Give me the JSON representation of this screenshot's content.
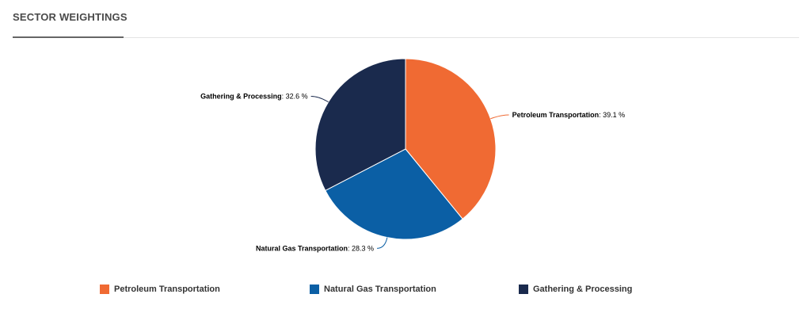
{
  "header": {
    "title": "SECTOR WEIGHTINGS"
  },
  "chart_data": {
    "type": "pie",
    "title": "SECTOR WEIGHTINGS",
    "start_position": "12 o'clock, clockwise",
    "value_suffix": " %",
    "slices": [
      {
        "name": "Petroleum Transportation",
        "value": 39.1,
        "value_label": "39.1 %",
        "color": "#f06a33"
      },
      {
        "name": "Natural Gas Transportation",
        "value": 28.3,
        "value_label": "28.3 %",
        "color": "#0b5fa5"
      },
      {
        "name": "Gathering & Processing",
        "value": 32.6,
        "value_label": "32.6 %",
        "color": "#1a2a4d"
      }
    ],
    "legend": {
      "placement": "bottom",
      "items": [
        "Petroleum Transportation",
        "Natural Gas Transportation",
        "Gathering & Processing"
      ]
    }
  }
}
